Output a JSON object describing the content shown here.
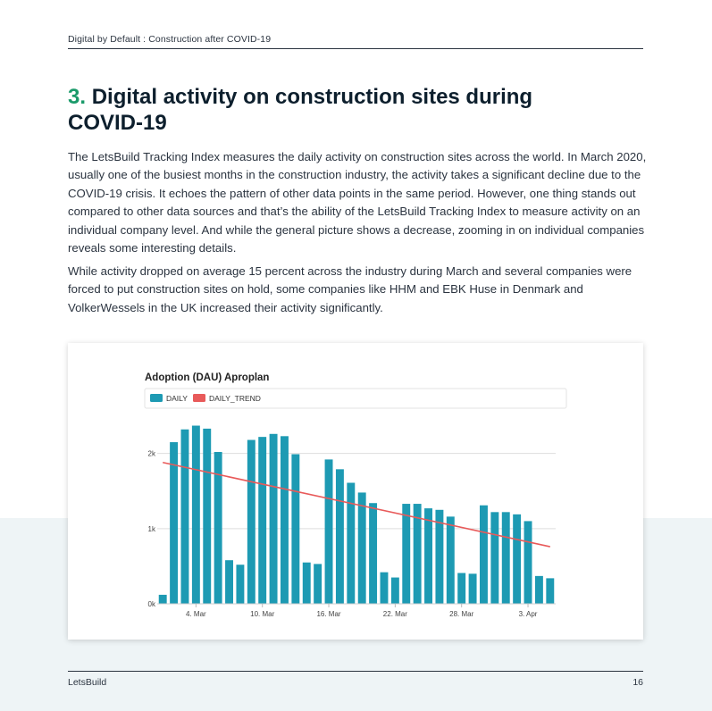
{
  "header": {
    "text": "Digital by Default : Construction after COVID-19"
  },
  "section": {
    "number": "3.",
    "title": "Digital activity on construction sites during COVID-19"
  },
  "paragraphs": [
    "The LetsBuild Tracking Index measures the daily activity on construction sites across the world. In March 2020, usually one of the busiest months in the construction industry, the activity takes a significant decline due to the COVID-19 crisis. It echoes the pattern of other data points in the same period. However, one thing stands out compared to other data sources and that’s the ability of the LetsBuild Tracking Index to measure activity on an individual company level. And while the general picture shows a decrease, zooming in on individual companies reveals some interesting details.",
    "While activity dropped on average 15 percent across the industry during March and several companies were forced to put construction sites on hold, some companies like HHM and EBK Huse in Denmark and VolkerWessels in the UK increased their activity significantly."
  ],
  "footer": {
    "left": "LetsBuild",
    "page": "16"
  },
  "colors": {
    "daily": "#1d9ab3",
    "trend": "#e85a5a",
    "accent": "#1a9a6a"
  },
  "chart_data": {
    "type": "bar",
    "title": "Adoption (DAU) Aproplan",
    "legend": [
      "DAILY",
      "DAILY_TREND"
    ],
    "legend_position": "top-left",
    "grid": true,
    "ylim": [
      0,
      2400
    ],
    "y_ticks": [
      0,
      1000,
      2000
    ],
    "y_tick_labels": [
      "0k",
      "1k",
      "2k"
    ],
    "x_tick_labels": [
      "4. Mar",
      "10. Mar",
      "16. Mar",
      "22. Mar",
      "28. Mar",
      "3. Apr"
    ],
    "x_tick_days": [
      3,
      9,
      15,
      21,
      27,
      33
    ],
    "series": [
      {
        "name": "DAILY",
        "type": "bar",
        "values": [
          120,
          2150,
          2320,
          2370,
          2330,
          2020,
          580,
          520,
          2180,
          2220,
          2260,
          2230,
          1990,
          550,
          530,
          1920,
          1790,
          1610,
          1480,
          1340,
          420,
          350,
          1330,
          1330,
          1270,
          1250,
          1160,
          410,
          400,
          1310,
          1220,
          1220,
          1190,
          1100,
          370,
          340
        ]
      },
      {
        "name": "DAILY_TREND",
        "type": "line",
        "start": 1880,
        "end": 760
      }
    ]
  }
}
